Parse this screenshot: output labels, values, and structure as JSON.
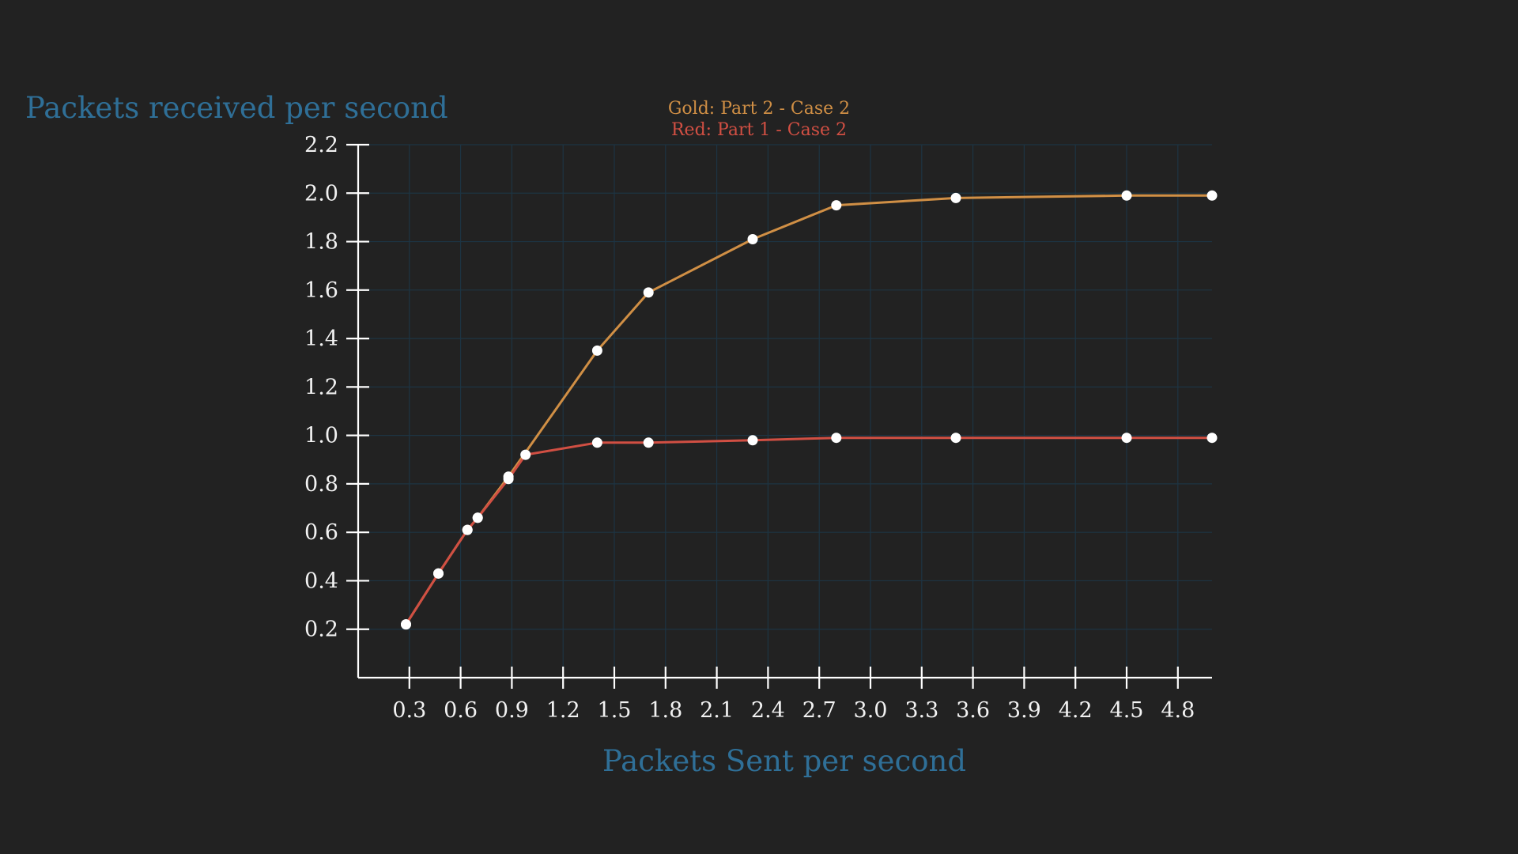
{
  "chart_data": {
    "type": "line",
    "title_lines": [
      {
        "text": "Gold: Part 2 - Case 2",
        "color": "#d08f45"
      },
      {
        "text": "Red: Part 1 - Case 2",
        "color": "#d14f43"
      }
    ],
    "xlabel": "Packets Sent per second",
    "ylabel": "Packets received per second",
    "xlim": [
      0,
      5.0
    ],
    "ylim": [
      0,
      2.2
    ],
    "x_ticks": [
      "0.3",
      "0.6",
      "0.9",
      "1.2",
      "1.5",
      "1.8",
      "2.1",
      "2.4",
      "2.7",
      "3.0",
      "3.3",
      "3.6",
      "3.9",
      "4.2",
      "4.5",
      "4.8"
    ],
    "y_ticks": [
      "0.2",
      "0.4",
      "0.6",
      "0.8",
      "1.0",
      "1.2",
      "1.4",
      "1.6",
      "1.8",
      "2.0",
      "2.2"
    ],
    "grid": true,
    "series": [
      {
        "name": "Gold: Part 2 - Case 2",
        "color": "#d08f45",
        "points": [
          [
            0.28,
            0.22
          ],
          [
            0.47,
            0.43
          ],
          [
            0.64,
            0.61
          ],
          [
            0.7,
            0.66
          ],
          [
            0.88,
            0.83
          ],
          [
            1.4,
            1.35
          ],
          [
            1.7,
            1.59
          ],
          [
            2.31,
            1.81
          ],
          [
            2.8,
            1.95
          ],
          [
            3.5,
            1.98
          ],
          [
            4.5,
            1.99
          ],
          [
            5.0,
            1.99
          ]
        ]
      },
      {
        "name": "Red: Part 1 - Case 2",
        "color": "#d14f43",
        "points": [
          [
            0.28,
            0.22
          ],
          [
            0.47,
            0.43
          ],
          [
            0.64,
            0.61
          ],
          [
            0.7,
            0.66
          ],
          [
            0.88,
            0.82
          ],
          [
            0.98,
            0.92
          ],
          [
            1.4,
            0.97
          ],
          [
            1.7,
            0.97
          ],
          [
            2.31,
            0.98
          ],
          [
            2.8,
            0.99
          ],
          [
            3.5,
            0.99
          ],
          [
            4.5,
            0.99
          ],
          [
            5.0,
            0.99
          ]
        ]
      }
    ],
    "colors": {
      "background": "#222222",
      "axis": "#ffffff",
      "grid": "#1d3443",
      "marker": "#ffffff",
      "label": "#2f6f97",
      "tick_text": "#f2f2f2"
    }
  }
}
